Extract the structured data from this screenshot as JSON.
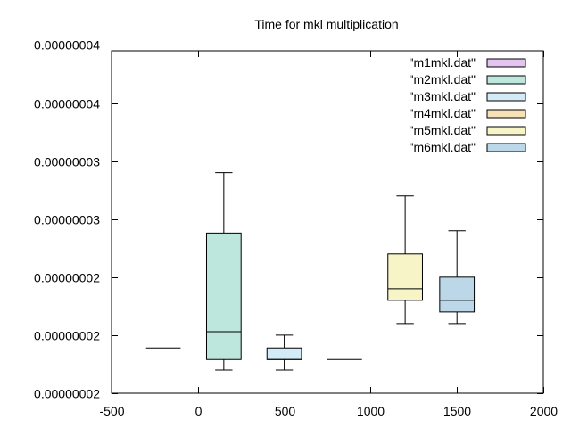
{
  "chart_data": {
    "type": "boxplot",
    "title": "Time for mkl multiplication",
    "xlabel": "",
    "ylabel": "",
    "xlim": [
      -500,
      2000
    ],
    "ylim": [
      1.5e-08,
      4.45e-08
    ],
    "x_ticks": [
      {
        "value": -500,
        "label": "-500"
      },
      {
        "value": 0,
        "label": "0"
      },
      {
        "value": 500,
        "label": "500"
      },
      {
        "value": 1000,
        "label": "1000"
      },
      {
        "value": 1500,
        "label": "1500"
      },
      {
        "value": 2000,
        "label": "2000"
      }
    ],
    "y_ticks": [
      {
        "value": 1.5e-08,
        "label": "0.00000002"
      },
      {
        "value": 2e-08,
        "label": "0.00000002"
      },
      {
        "value": 2.5e-08,
        "label": "0.00000002"
      },
      {
        "value": 3e-08,
        "label": "0.00000003"
      },
      {
        "value": 3.5e-08,
        "label": "0.00000003"
      },
      {
        "value": 4e-08,
        "label": "0.00000004"
      },
      {
        "value": 4.5e-08,
        "label": "0.00000004"
      }
    ],
    "grid": false,
    "legend_position": "top-right",
    "series": [
      {
        "name": "\"m1mkl.dat\"",
        "color": "#e3c3f0",
        "x": -200,
        "width": 200,
        "whisker_low": 1.89e-08,
        "q1": 1.89e-08,
        "median": 1.89e-08,
        "q3": 1.89e-08,
        "whisker_high": 1.89e-08
      },
      {
        "name": "\"m2mkl.dat\"",
        "color": "#bde6dc",
        "x": 150,
        "width": 200,
        "whisker_low": 1.7e-08,
        "q1": 1.79e-08,
        "median": 2.03e-08,
        "q3": 2.88e-08,
        "whisker_high": 3.4e-08
      },
      {
        "name": "\"m3mkl.dat\"",
        "color": "#d3ebf7",
        "x": 500,
        "width": 200,
        "whisker_low": 1.7e-08,
        "q1": 1.79e-08,
        "median": 1.79e-08,
        "q3": 1.89e-08,
        "whisker_high": 2e-08
      },
      {
        "name": "\"m4mkl.dat\"",
        "color": "#f7e1b7",
        "x": 850,
        "width": 200,
        "whisker_low": 1.79e-08,
        "q1": 1.79e-08,
        "median": 1.79e-08,
        "q3": 1.79e-08,
        "whisker_high": 1.79e-08
      },
      {
        "name": "\"m5mkl.dat\"",
        "color": "#f7f4c8",
        "x": 1200,
        "width": 200,
        "whisker_low": 2.1e-08,
        "q1": 2.3e-08,
        "median": 2.4e-08,
        "q3": 2.7e-08,
        "whisker_high": 3.2e-08
      },
      {
        "name": "\"m6mkl.dat\"",
        "color": "#bcd7e8",
        "x": 1500,
        "width": 200,
        "whisker_low": 2.1e-08,
        "q1": 2.2e-08,
        "median": 2.3e-08,
        "q3": 2.5e-08,
        "whisker_high": 2.9e-08
      }
    ]
  }
}
